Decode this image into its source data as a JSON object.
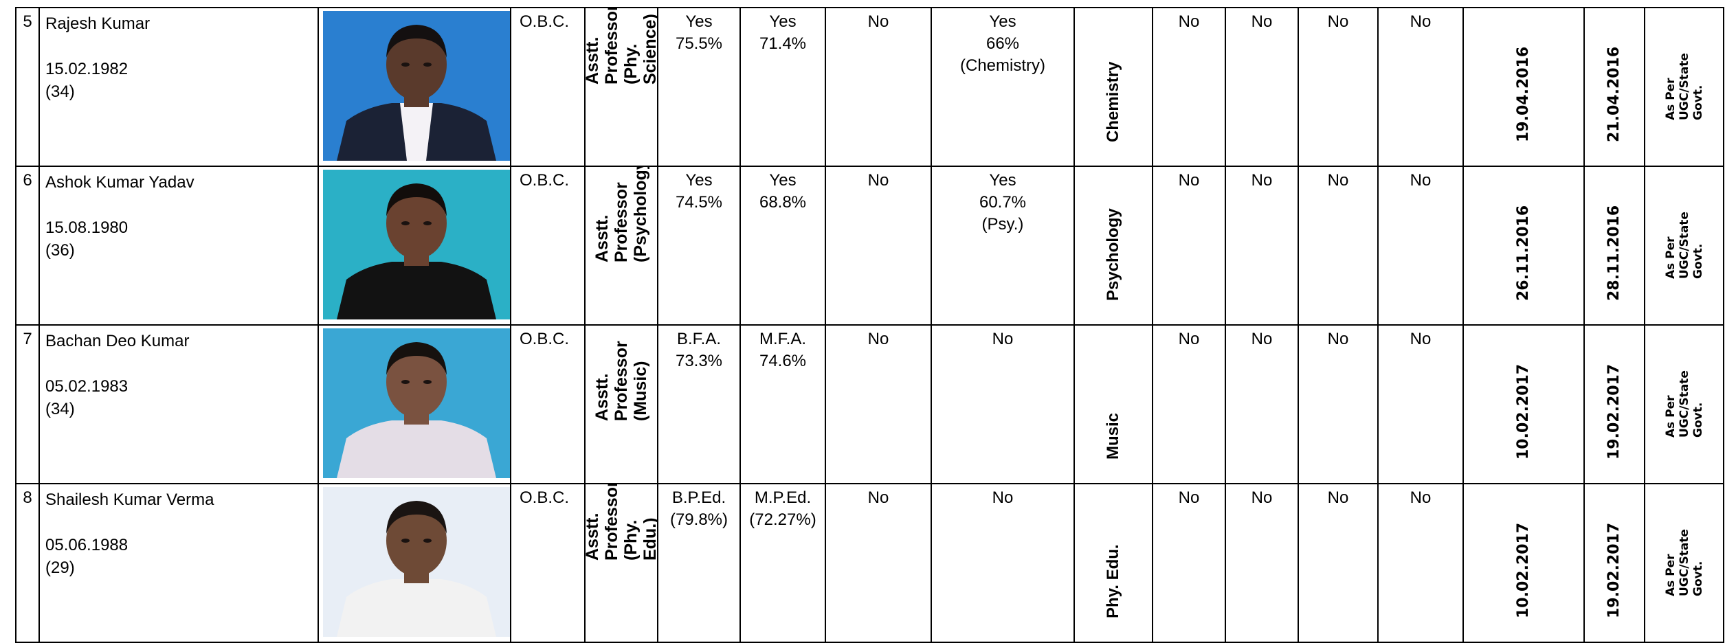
{
  "rows": [
    {
      "sn": "5",
      "name": "Rajesh Kumar",
      "dob": "15.02.1982",
      "age": "(34)",
      "category": "O.B.C.",
      "post": "Asstt. Professor\n(Phy. Science)",
      "grad": "Yes\n75.5%",
      "pg": "Yes\n71.4%",
      "c1": "No",
      "c2": "Yes\n66%\n(Chemistry)",
      "subject": "Chemistry",
      "c3": "No",
      "c4": "No",
      "c5": "No",
      "c6": "No",
      "date1": "19.04.2016",
      "date2": "21.04.2016",
      "pay": "As Per UGC/State\nGovt.",
      "photo": {
        "bg": "#2a7fd0",
        "suit": "#1b2235",
        "shirt": "#f4f2f6",
        "skin": "#5a3a2c",
        "hair": "#141010"
      }
    },
    {
      "sn": "6",
      "name": "Ashok Kumar Yadav",
      "dob": "15.08.1980",
      "age": "(36)",
      "category": "O.B.C.",
      "post": "Asstt. Professor\n(Psychology)",
      "grad": "Yes\n74.5%",
      "pg": "Yes\n68.8%",
      "c1": "No",
      "c2": "Yes\n60.7%\n(Psy.)",
      "subject": "Psychology",
      "c3": "No",
      "c4": "No",
      "c5": "No",
      "c6": "No",
      "date1": "26.11.2016",
      "date2": "28.11.2016",
      "pay": "As Per UGC/State\nGovt.",
      "photo": {
        "bg": "#2bb0c6",
        "suit": "#121212",
        "shirt": "#121212",
        "skin": "#6a4230",
        "hair": "#120d0b"
      }
    },
    {
      "sn": "7",
      "name": "Bachan Deo Kumar",
      "dob": "05.02.1983",
      "age": "(34)",
      "category": "O.B.C.",
      "post": "Asstt. Professor\n(Music)",
      "grad": "B.F.A.\n73.3%",
      "pg": "M.F.A.\n74.6%",
      "c1": "No",
      "c2": "No",
      "subject": "Music",
      "c3": "No",
      "c4": "No",
      "c5": "No",
      "c6": "No",
      "date1": "10.02.2017",
      "date2": "19.02.2017",
      "pay": "As Per UGC/State\nGovt.",
      "photo": {
        "bg": "#3aa7d4",
        "suit": "#e4dde6",
        "shirt": "#e4dde6",
        "skin": "#7a5240",
        "hair": "#16110e"
      }
    },
    {
      "sn": "8",
      "name": "Shailesh Kumar Verma",
      "dob": "05.06.1988",
      "age": "(29)",
      "category": "O.B.C.",
      "post": "Asstt. Professor\n(Phy. Edu.)",
      "grad": "B.P.Ed.\n(79.8%)",
      "pg": "M.P.Ed.\n(72.27%)",
      "c1": "No",
      "c2": "No",
      "subject": "Phy. Edu.",
      "c3": "No",
      "c4": "No",
      "c5": "No",
      "c6": "No",
      "date1": "10.02.2017",
      "date2": "19.02.2017",
      "pay": "As Per UGC/State\nGovt.",
      "photo": {
        "bg": "#e8eef6",
        "suit": "#f2f2f2",
        "shirt": "#f2f2f2",
        "skin": "#6e4a36",
        "hair": "#1a1412"
      }
    }
  ]
}
